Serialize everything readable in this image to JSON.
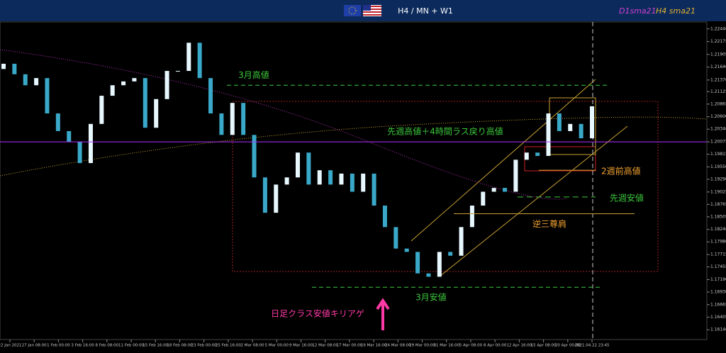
{
  "header": {
    "timeframe": "H4 / MN + W1",
    "ma1": "D1sma21",
    "ma2": "H4 sma21"
  },
  "chart_data": {
    "type": "candlestick",
    "ylim": [
      1.1595,
      1.2257
    ],
    "yticks": [
      {
        "value": 1.2244,
        "label": "1.22440"
      },
      {
        "value": 1.22175,
        "label": "1.22175"
      },
      {
        "value": 1.21905,
        "label": "1.21905"
      },
      {
        "value": 1.2164,
        "label": "1.21640"
      },
      {
        "value": 1.2137,
        "label": "1.21370"
      },
      {
        "value": 1.21125,
        "label": "1.21125"
      },
      {
        "value": 1.20865,
        "label": "1.20865"
      },
      {
        "value": 1.206,
        "label": "1.20600"
      },
      {
        "value": 1.2034,
        "label": "1.20340"
      },
      {
        "value": 1.20075,
        "label": "1.20075"
      },
      {
        "value": 1.19815,
        "label": "1.19815"
      },
      {
        "value": 1.1955,
        "label": "1.19550"
      },
      {
        "value": 1.1929,
        "label": "1.19290"
      },
      {
        "value": 1.19025,
        "label": "1.19025"
      },
      {
        "value": 1.18765,
        "label": "1.18765"
      },
      {
        "value": 1.18505,
        "label": "1.18505"
      },
      {
        "value": 1.1824,
        "label": "1.18240"
      },
      {
        "value": 1.1798,
        "label": "1.17980"
      },
      {
        "value": 1.17715,
        "label": "1.17715"
      },
      {
        "value": 1.17455,
        "label": "1.17455"
      },
      {
        "value": 1.1719,
        "label": "1.17190"
      },
      {
        "value": 1.1693,
        "label": "1.16930"
      },
      {
        "value": 1.16665,
        "label": "1.16665"
      },
      {
        "value": 1.16405,
        "label": "1.16405"
      },
      {
        "value": 1.1614,
        "label": "1.16140"
      }
    ],
    "categories": [
      "22 Jan 2021",
      "27 Jan 08:00",
      "1 Feb 00:00",
      "3 Feb 16:00",
      "8 Feb 08:00",
      "11 Feb 00:00",
      "15 Feb 16:00",
      "18 Feb 08:00",
      "23 Feb 00:00",
      "25 Feb 16:00",
      "2 Mar 08:00",
      "5 Mar 00:00",
      "9 Mar 16:00",
      "12 Mar 08:00",
      "17 Mar 00:00",
      "19 Mar 16:00",
      "24 Mar 08:00",
      "29 Mar 00:00",
      "31 Mar 16:00",
      "5 Apr 08:00",
      "8 Apr 00:00",
      "12 Apr 16:00",
      "15 Apr 08:00",
      "20 Apr 00:00",
      "2021.04.22 23:45"
    ],
    "open": [
      1.216,
      1.2171,
      1.2149,
      1.2126,
      1.2141,
      1.2067,
      1.203,
      1.2007,
      1.1963,
      1.2045,
      1.2104,
      1.2126,
      1.2134,
      1.2141,
      1.2037,
      1.2097,
      1.2156,
      1.2156,
      1.2215,
      1.2141,
      1.2067,
      1.2022,
      1.2089,
      1.2022,
      1.1933,
      1.1859,
      1.1918,
      1.1933,
      1.1985,
      1.1918,
      1.1948,
      1.1918,
      1.1941,
      1.1903,
      1.1941,
      1.1874,
      1.1829,
      1.1784,
      1.1777,
      1.1732,
      1.1725,
      1.1777,
      1.1769,
      1.1829,
      1.1874,
      1.1903,
      1.1911,
      1.1903,
      1.197,
      1.1985,
      1.1978,
      1.2067,
      1.203,
      1.2045,
      1.2015
    ],
    "close": [
      1.2171,
      1.2149,
      1.2126,
      1.2141,
      1.2067,
      1.203,
      1.2007,
      1.1963,
      1.2045,
      1.2104,
      1.2126,
      1.2134,
      1.2141,
      1.2037,
      1.2097,
      1.2156,
      1.2156,
      1.2215,
      1.2141,
      1.2067,
      1.2022,
      1.2089,
      1.2022,
      1.1933,
      1.1859,
      1.1918,
      1.1933,
      1.1985,
      1.1918,
      1.1948,
      1.1918,
      1.1941,
      1.1903,
      1.1941,
      1.1874,
      1.1829,
      1.1784,
      1.1777,
      1.1732,
      1.1725,
      1.1777,
      1.1769,
      1.1829,
      1.1874,
      1.1903,
      1.1911,
      1.1903,
      1.197,
      1.1985,
      1.1978,
      1.2067,
      1.203,
      1.2045,
      1.2015,
      1.2082
    ],
    "annotations": [
      {
        "text": "3月高値",
        "value": 1.2126
      },
      {
        "text": "先週高値＋4時間ラス戻り高値",
        "value": 1.20075
      },
      {
        "text": "2週前高値",
        "value": 1.1948
      },
      {
        "text": "先週安値",
        "value": 1.1892
      },
      {
        "text": "逆三尊肩",
        "value": 1.1857
      },
      {
        "text": "3月安値",
        "value": 1.1703
      }
    ],
    "note": "日足クラス安値キリアゲ"
  }
}
